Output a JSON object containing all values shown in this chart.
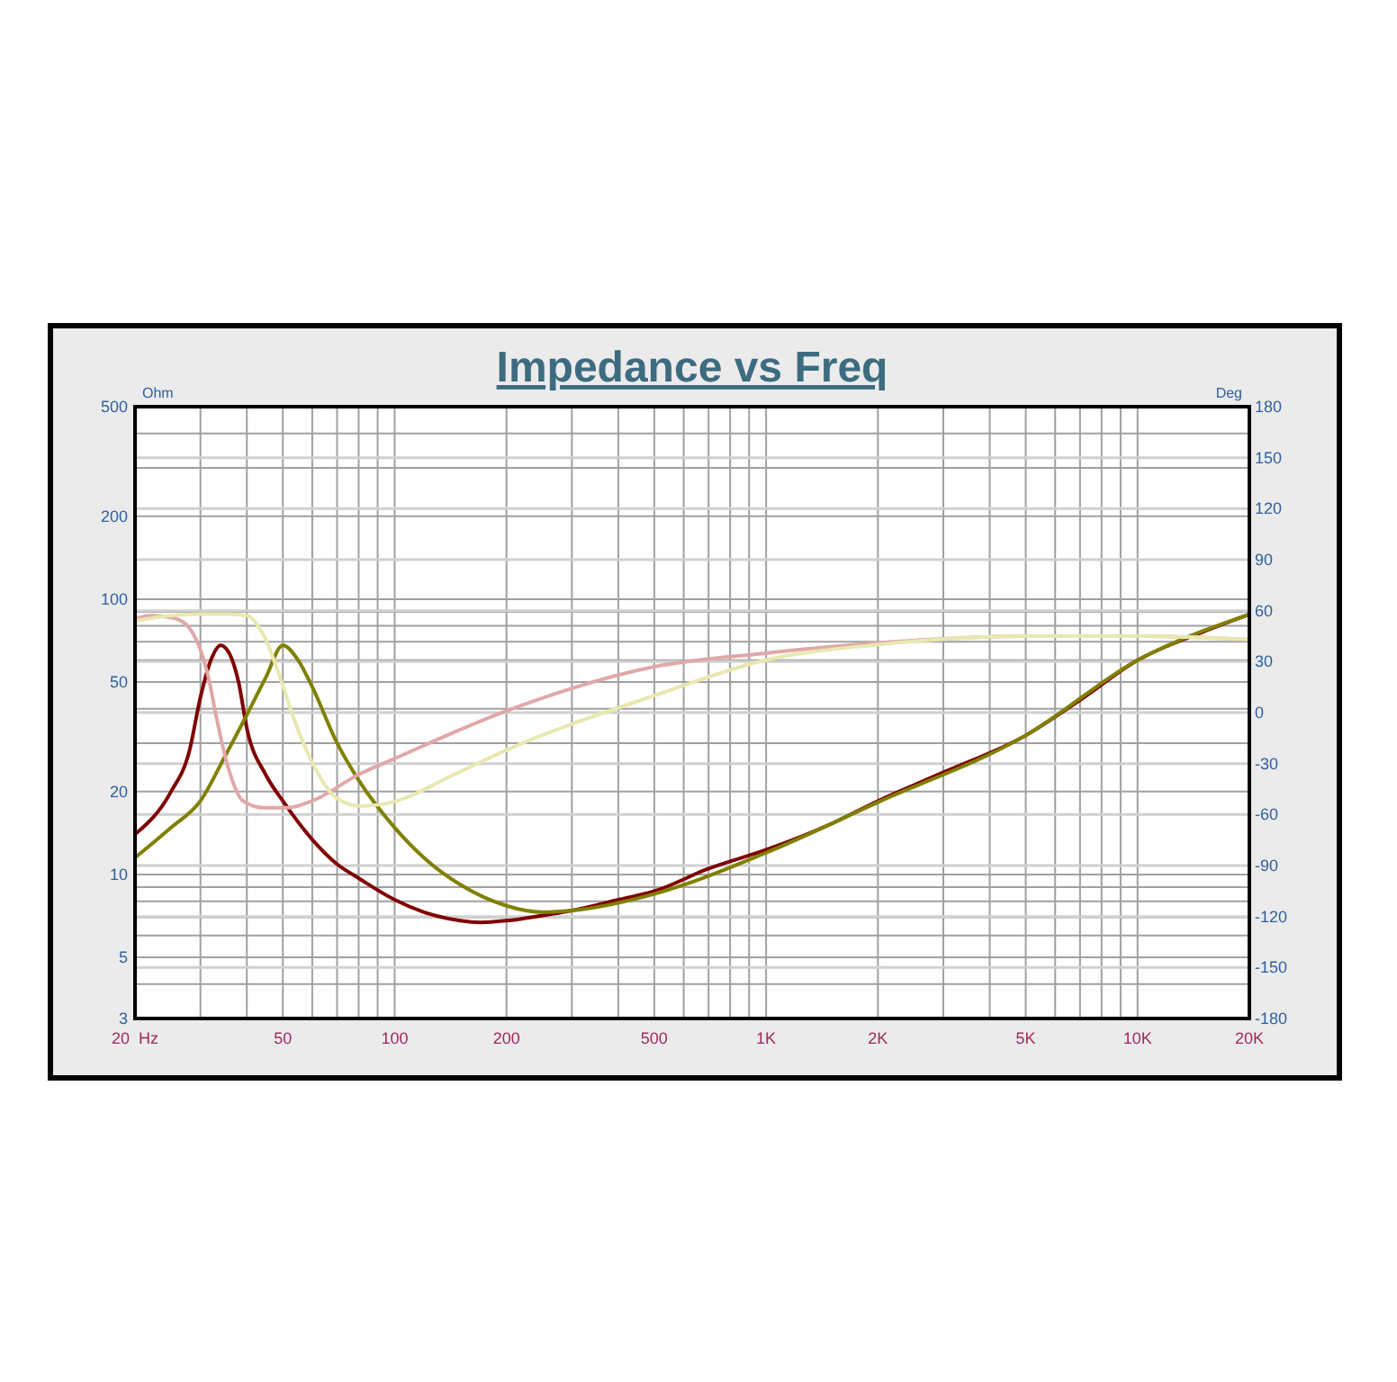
{
  "chart_data": {
    "type": "line",
    "title": "Impedance vs Freq",
    "ylabel": "Ohm",
    "y2label": "Deg",
    "log": "xy",
    "grid": true,
    "line_style": "solid",
    "marker": "none",
    "xlim": [
      20,
      20000
    ],
    "ylim": [
      3,
      500
    ],
    "y2lim": [
      -180,
      180
    ],
    "xticks": [
      {
        "value": 20,
        "label": "20  Hz"
      },
      {
        "value": 30,
        "label": null
      },
      {
        "value": 40,
        "label": null
      },
      50,
      {
        "value": 60,
        "label": null
      },
      {
        "value": 70,
        "label": null
      },
      {
        "value": 80,
        "label": null
      },
      {
        "value": 90,
        "label": null
      },
      100,
      200,
      {
        "value": 300,
        "label": null
      },
      {
        "value": 400,
        "label": null
      },
      500,
      {
        "value": 600,
        "label": null
      },
      {
        "value": 700,
        "label": null
      },
      {
        "value": 800,
        "label": null
      },
      {
        "value": 900,
        "label": null
      },
      {
        "value": 1000,
        "label": "1K"
      },
      {
        "value": 2000,
        "label": "2K"
      },
      {
        "value": 3000,
        "label": null
      },
      {
        "value": 4000,
        "label": null
      },
      {
        "value": 5000,
        "label": "5K"
      },
      {
        "value": 6000,
        "label": null
      },
      {
        "value": 7000,
        "label": null
      },
      {
        "value": 8000,
        "label": null
      },
      {
        "value": 9000,
        "label": null
      },
      {
        "value": 10000,
        "label": "10K"
      },
      {
        "value": 20000,
        "label": "20K"
      }
    ],
    "yticks": [
      3,
      {
        "value": 4,
        "label": null
      },
      5,
      {
        "value": 6,
        "label": null
      },
      {
        "value": 7,
        "label": null
      },
      {
        "value": 8,
        "label": null
      },
      {
        "value": 9,
        "label": null
      },
      10,
      20,
      {
        "value": 30,
        "label": null
      },
      {
        "value": 40,
        "label": null
      },
      50,
      {
        "value": 60,
        "label": null
      },
      {
        "value": 70,
        "label": null
      },
      {
        "value": 80,
        "label": null
      },
      {
        "value": 90,
        "label": null
      },
      100,
      200,
      {
        "value": 300,
        "label": null
      },
      {
        "value": 400,
        "label": null
      },
      500
    ],
    "y2ticks": [
      -180,
      -150,
      -120,
      -90,
      -60,
      -30,
      0,
      30,
      60,
      90,
      120,
      150,
      180
    ],
    "series": [
      {
        "color": "#800000",
        "x": [
          20,
          25,
          28,
          30,
          32,
          34,
          36,
          38,
          40,
          45,
          50,
          60,
          70,
          80,
          100,
          120,
          150,
          170,
          200,
          250,
          300,
          400,
          500,
          700,
          1000,
          1500,
          2000,
          3000,
          5000,
          7000,
          10000,
          15000,
          20000
        ],
        "values": [
          14,
          20,
          28,
          44,
          60,
          68,
          63,
          50,
          34,
          23,
          18.5,
          13.4,
          10.9,
          9.7,
          8.1,
          7.3,
          6.8,
          6.7,
          6.8,
          7.1,
          7.4,
          8.1,
          8.7,
          10.5,
          12.3,
          15.3,
          18.5,
          23.5,
          32,
          43,
          60,
          76,
          88
        ]
      },
      {
        "color": "#808000",
        "x": [
          20,
          25,
          30,
          35,
          40,
          45,
          50,
          55,
          60,
          70,
          80,
          100,
          120,
          150,
          200,
          250,
          300,
          500,
          1000,
          2000,
          5000,
          10000,
          20000
        ],
        "values": [
          11.5,
          14.8,
          18.5,
          27,
          38,
          52,
          68,
          60,
          48,
          30,
          22,
          14.8,
          11.5,
          9.2,
          7.7,
          7.3,
          7.4,
          8.5,
          12,
          18.3,
          32,
          60,
          88
        ]
      },
      {
        "axis": "y2",
        "color": "#e0a8a8",
        "x": [
          20,
          22,
          25,
          27.4,
          31.8,
          33,
          35.6,
          39.1,
          44.5,
          51.6,
          59.9,
          80.7,
          100,
          200,
          500,
          1000,
          2000,
          5000,
          10000,
          20000
        ],
        "values": [
          55,
          57,
          56,
          52,
          17,
          -1,
          -32,
          -52,
          -56,
          -56,
          -52,
          -36,
          -27,
          1,
          27,
          35,
          41,
          45,
          45,
          43
        ]
      },
      {
        "axis": "y2",
        "color": "#e8e8b0",
        "x": [
          20,
          25,
          30,
          35,
          40,
          44.5,
          49.8,
          53.6,
          59.9,
          69.5,
          80.7,
          97.2,
          146,
          200,
          500,
          1000,
          2000,
          5000,
          10000,
          20000
        ],
        "values": [
          54,
          57,
          58,
          58,
          57,
          45,
          17,
          -4,
          -29,
          -50,
          -55,
          -53,
          -36,
          -22,
          10,
          31,
          40,
          45,
          45,
          43
        ]
      }
    ]
  }
}
